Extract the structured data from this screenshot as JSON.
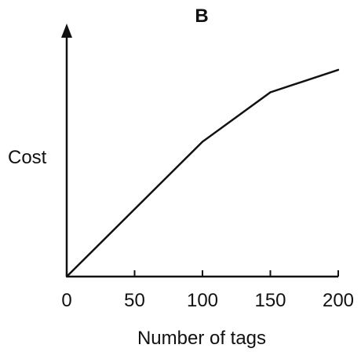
{
  "chart_data": {
    "type": "line",
    "title": "B",
    "xlabel": "Number of tags",
    "ylabel": "Cost",
    "x_ticks": [
      "0",
      "50",
      "100",
      "150",
      "200"
    ],
    "xlim": [
      0,
      200
    ],
    "ylim": [
      0,
      1
    ],
    "y_axis_unlabeled": true,
    "grid": false,
    "series": [
      {
        "x": [
          0,
          100,
          150,
          200
        ],
        "y": [
          0,
          0.6,
          0.82,
          0.92
        ]
      }
    ],
    "line_color": "#111111"
  }
}
